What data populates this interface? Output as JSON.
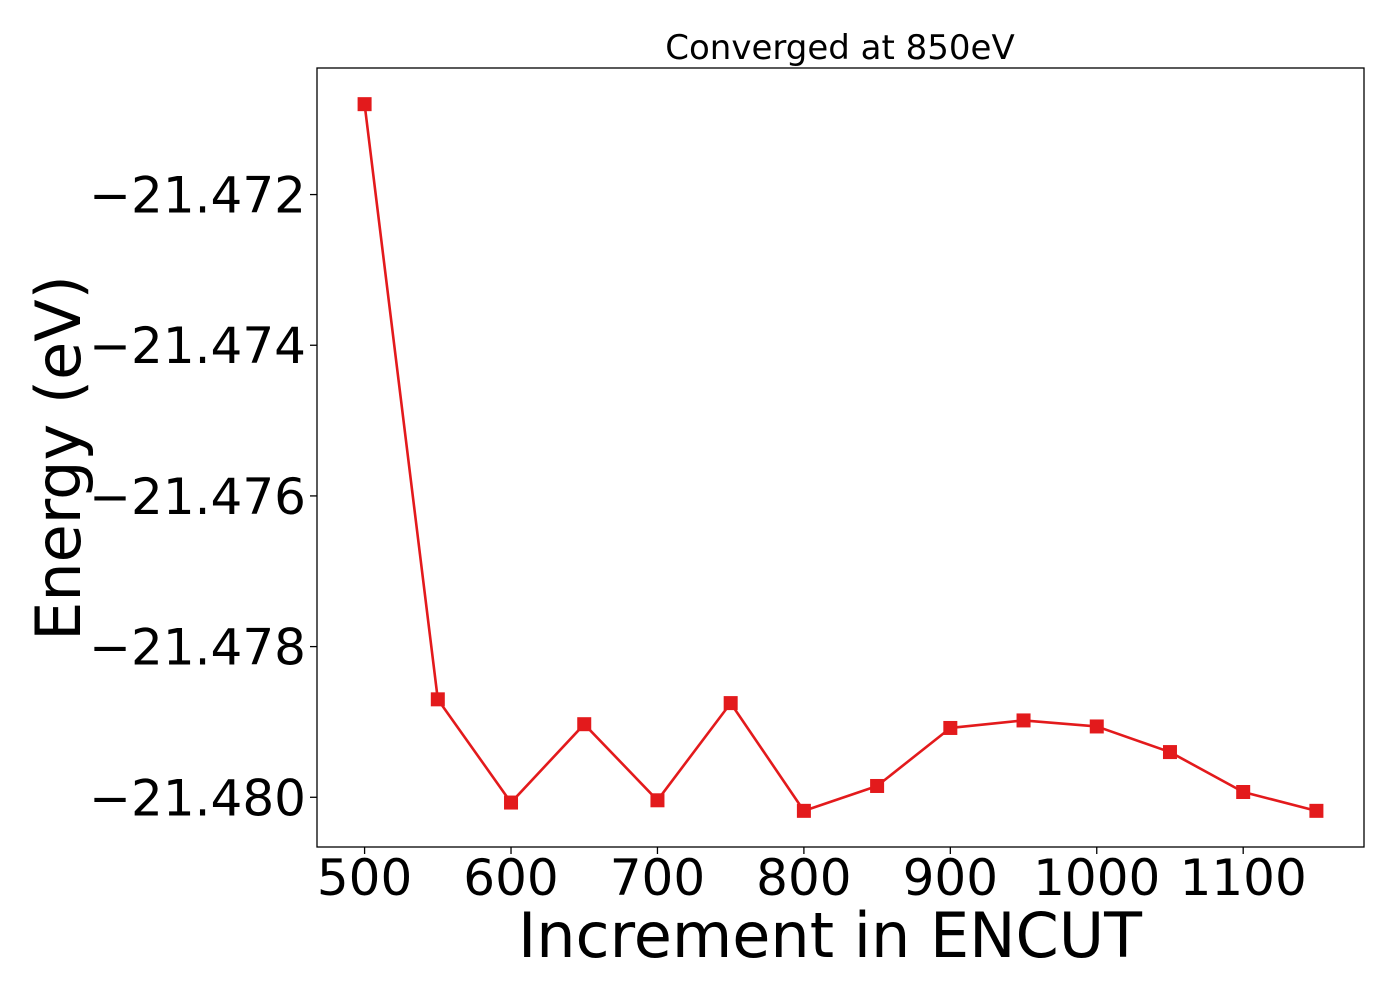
{
  "chart_data": {
    "type": "line",
    "title": "Converged at 850eV",
    "xlabel": "Increment in ENCUT",
    "ylabel": "Energy (eV)",
    "x": [
      500,
      550,
      600,
      650,
      700,
      750,
      800,
      850,
      900,
      950,
      1000,
      1050,
      1100,
      1150
    ],
    "series": [
      {
        "values": [
          -21.4708,
          -21.4787,
          -21.48007,
          -21.47903,
          -21.48004,
          -21.47875,
          -21.48018,
          -21.47985,
          -21.47908,
          -21.47898,
          -21.47906,
          -21.4794,
          -21.47993,
          -21.48018
        ],
        "color": "#e31a1c",
        "marker": "square"
      }
    ],
    "xlim": [
      467.5,
      1182.5
    ],
    "ylim": [
      -21.48066,
      -21.47032
    ],
    "xticks": [
      500,
      600,
      700,
      800,
      900,
      1000,
      1100
    ],
    "xtick_labels": [
      "500",
      "600",
      "700",
      "800",
      "900",
      "1000",
      "1100"
    ],
    "yticks": [
      -21.472,
      -21.474,
      -21.476,
      -21.478,
      -21.48
    ],
    "ytick_labels": [
      "−21.472",
      "−21.474",
      "−21.476",
      "−21.478",
      "−21.480"
    ],
    "grid": false,
    "legend": "none"
  }
}
